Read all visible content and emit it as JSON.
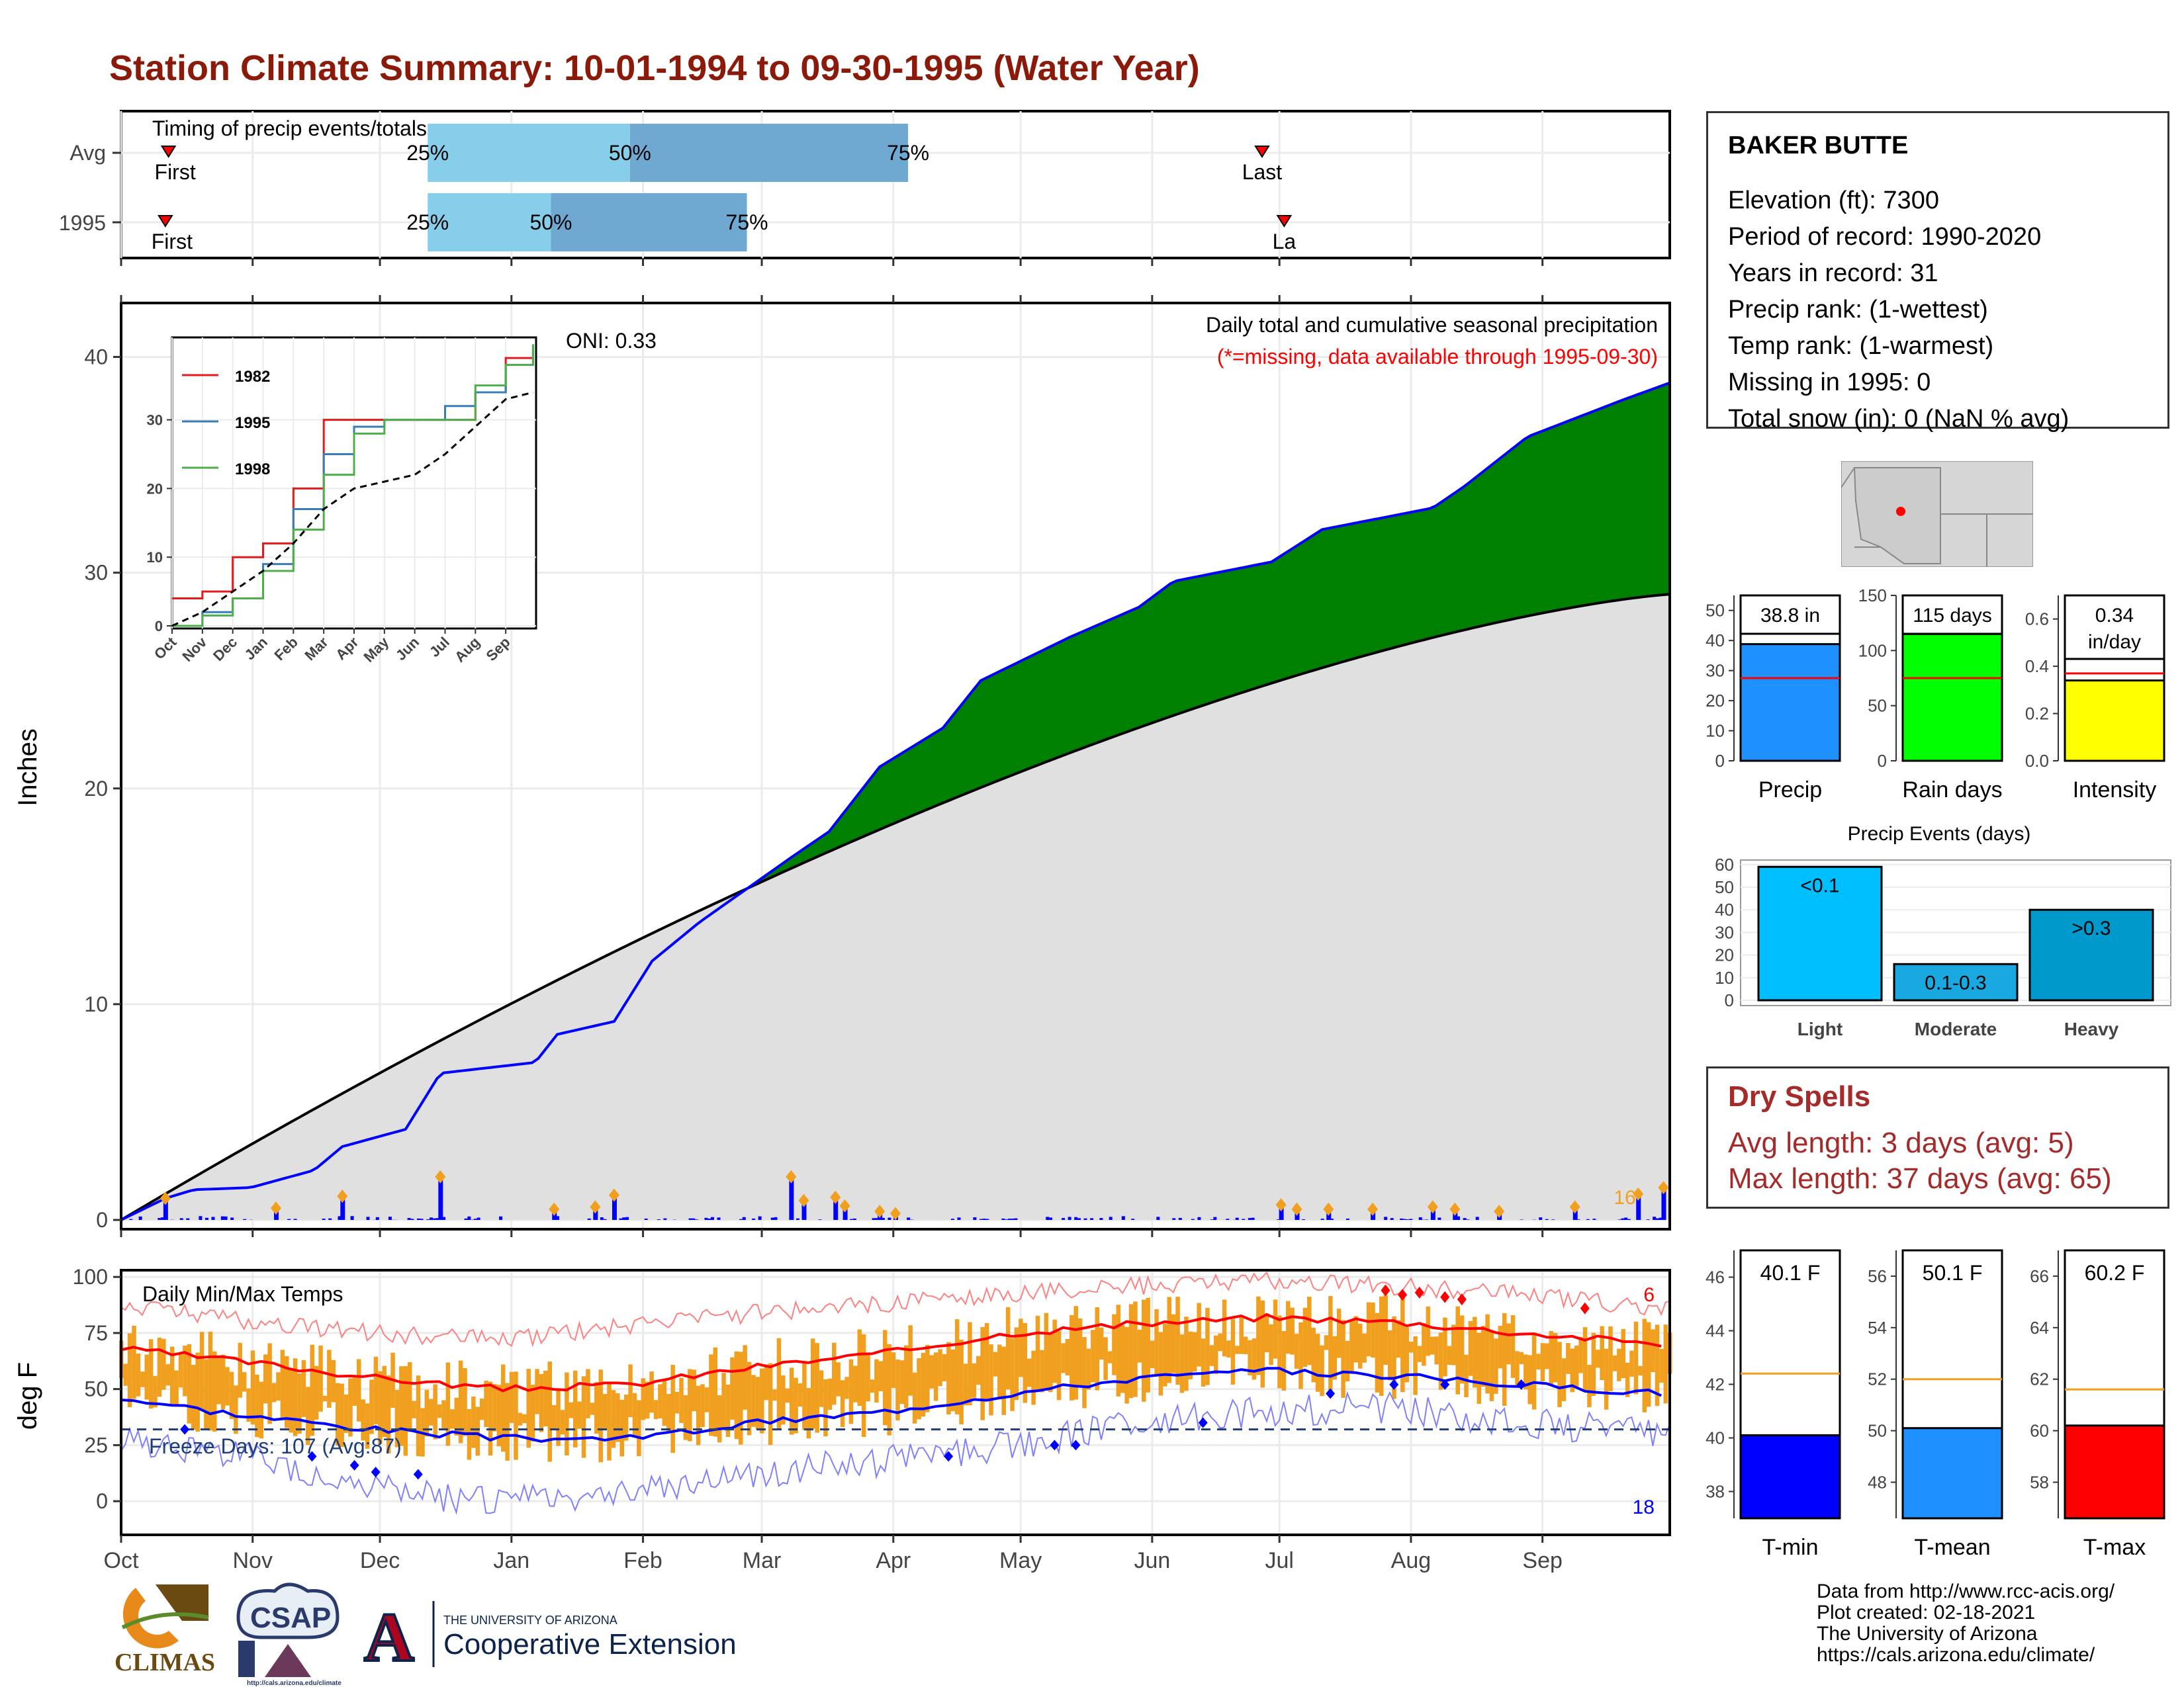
{
  "title": "Station Climate Summary: 10-01-1994 to 09-30-1995 (Water Year)",
  "colors": {
    "title": "#8B1A0A",
    "green": "#008000",
    "blue": "#0000FF",
    "brown": "#8B5A14",
    "gray_fill": "#E0E0E0",
    "orange": "#F0A01E",
    "red": "#FF0000",
    "light_blue": "#87CEEB",
    "steel_blue": "#6FA8D0",
    "dry_red": "#A52A2A"
  },
  "timing": {
    "title": "Timing of precip events/totals",
    "rows": [
      {
        "label": "Avg",
        "first_label": "First",
        "last_label": "Last",
        "first_doy": 15,
        "last_doy": 361,
        "q25": 97,
        "q50": 161,
        "q75": 249,
        "q25_label": "25%",
        "q50_label": "50%",
        "q75_label": "75%"
      },
      {
        "label": "1995",
        "first_label": "First",
        "last_label": "La",
        "first_doy": 14,
        "last_doy": 368,
        "q25": 97,
        "q50": 136,
        "q75": 198,
        "q25_label": "25%",
        "q50_label": "50%",
        "q75_label": "75%"
      }
    ]
  },
  "station": {
    "name": "BAKER BUTTE",
    "lines": [
      "Elevation (ft): 7300",
      "Period of record: 1990-2020",
      "Years in record: 31",
      "Precip rank:  (1-wettest)",
      "Temp rank:  (1-warmest)",
      "Missing in 1995: 0",
      "Total snow (in): 0 (NaN % avg)"
    ]
  },
  "main_chart": {
    "ylabel": "Inches",
    "oni": "ONI: 0.33",
    "caption": "Daily total and cumulative seasonal precipitation",
    "missing_note": "(*=missing, data available through 1995-09-30)",
    "count_label": "16",
    "yticks": [
      "0",
      "10",
      "20",
      "30",
      "40"
    ],
    "months": [
      "Oct",
      "Nov",
      "Dec",
      "Jan",
      "Feb",
      "Mar",
      "Apr",
      "May",
      "Jun",
      "Jul",
      "Aug",
      "Sep"
    ]
  },
  "inset": {
    "legend": [
      "1982",
      "1995",
      "1998"
    ],
    "yticks": [
      "0",
      "10",
      "20",
      "30"
    ],
    "months": [
      "Oct",
      "Nov",
      "Dec",
      "Jan",
      "Feb",
      "Mar",
      "Apr",
      "May",
      "Jun",
      "Jul",
      "Aug",
      "Sep"
    ]
  },
  "temp_chart": {
    "ylabel": "deg F",
    "title": "Daily Min/Max Temps",
    "freeze_label": "Freeze Days: 107 (Avg:87)",
    "hot_count": "6",
    "cold_count": "18",
    "yticks": [
      "0",
      "25",
      "50",
      "75",
      "100"
    ],
    "months": [
      "Oct",
      "Nov",
      "Dec",
      "Jan",
      "Feb",
      "Mar",
      "Apr",
      "May",
      "Jun",
      "Jul",
      "Aug",
      "Sep"
    ]
  },
  "bar_precip": {
    "value_label": "38.8 in",
    "xlabel": "Precip",
    "yticks": [
      "0",
      "10",
      "20",
      "30",
      "40",
      "50"
    ]
  },
  "bar_raindays": {
    "value_label": "115 days",
    "xlabel": "Rain days",
    "yticks": [
      "0",
      "50",
      "100",
      "150"
    ]
  },
  "bar_intensity": {
    "value_label_1": "0.34",
    "value_label_2": "in/day",
    "xlabel": "Intensity",
    "yticks": [
      "0.0",
      "0.2",
      "0.4",
      "0.6"
    ]
  },
  "events": {
    "title": "Precip Events (days)",
    "yticks": [
      "0",
      "10",
      "20",
      "30",
      "40",
      "50",
      "60"
    ],
    "bars": [
      {
        "name": "Light",
        "label": "<0.1"
      },
      {
        "name": "Moderate",
        "label": "0.1-0.3"
      },
      {
        "name": "Heavy",
        "label": ">0.3"
      }
    ]
  },
  "dry_spells": {
    "title": "Dry Spells",
    "avg": "Avg length: 3 days (avg: 5)",
    "max": "Max length: 37 days (avg: 65)"
  },
  "temp_bars": [
    {
      "label": "40.1 F",
      "xlabel": "T-min",
      "yticks": [
        "38",
        "40",
        "42",
        "44",
        "46"
      ]
    },
    {
      "label": "50.1 F",
      "xlabel": "T-mean",
      "yticks": [
        "48",
        "50",
        "52",
        "54",
        "56"
      ]
    },
    {
      "label": "60.2 F",
      "xlabel": "T-max",
      "yticks": [
        "58",
        "60",
        "62",
        "64",
        "66"
      ]
    }
  ],
  "footer": {
    "lines": [
      "Data from http://www.rcc-acis.org/",
      "Plot created: 02-18-2021",
      "The University of Arizona",
      "https://cals.arizona.edu/climate/"
    ]
  },
  "logos": {
    "climas": "CLIMAS",
    "csap": "CSAP",
    "csap_url": "http://cals.arizona.edu/climate",
    "ua_letter": "A",
    "ua_small": "THE UNIVERSITY OF ARIZONA",
    "ua_big": "Cooperative Extension"
  },
  "chart_data": [
    {
      "type": "area",
      "title": "Daily total and cumulative seasonal precipitation",
      "ylabel": "Inches",
      "ylim": [
        0,
        42
      ],
      "x_unit": "day of water year (Oct 1 = 0)",
      "cumulative_1995": [
        [
          0,
          0
        ],
        [
          14,
          1.0
        ],
        [
          23,
          1.4
        ],
        [
          41,
          1.5
        ],
        [
          61,
          2.3
        ],
        [
          70,
          3.4
        ],
        [
          90,
          4.2
        ],
        [
          101,
          6.8
        ],
        [
          131,
          7.3
        ],
        [
          138,
          8.6
        ],
        [
          156,
          9.2
        ],
        [
          168,
          12.0
        ],
        [
          183,
          13.8
        ],
        [
          212,
          16.8
        ],
        [
          224,
          18.0
        ],
        [
          240,
          21.0
        ],
        [
          260,
          22.8
        ],
        [
          272,
          25.0
        ],
        [
          300,
          27.0
        ],
        [
          322,
          28.4
        ],
        [
          333,
          29.6
        ],
        [
          364,
          30.5
        ],
        [
          380,
          32.0
        ],
        [
          415,
          33.0
        ],
        [
          425,
          34.0
        ],
        [
          445,
          36.3
        ],
        [
          475,
          38.0
        ],
        [
          490,
          38.8
        ]
      ],
      "cumulative_avg_end": 29.0,
      "daily_precip_highlights": [
        [
          14,
          1.0
        ],
        [
          49,
          0.55
        ],
        [
          70,
          1.1
        ],
        [
          101,
          2.0
        ],
        [
          137,
          0.5
        ],
        [
          150,
          0.6
        ],
        [
          156,
          1.15
        ],
        [
          212,
          2.0
        ],
        [
          216,
          0.9
        ],
        [
          226,
          1.05
        ],
        [
          229,
          0.65
        ],
        [
          240,
          0.4
        ],
        [
          245,
          0.3
        ],
        [
          367,
          0.7
        ],
        [
          372,
          0.5
        ],
        [
          382,
          0.5
        ],
        [
          396,
          0.5
        ],
        [
          415,
          0.6
        ],
        [
          422,
          0.5
        ],
        [
          436,
          0.4
        ],
        [
          460,
          0.6
        ],
        [
          480,
          1.2
        ],
        [
          488,
          1.5
        ]
      ]
    },
    {
      "type": "line",
      "title": "Inset cumulative precipitation comparison",
      "series": [
        {
          "name": "1982",
          "x": [
            0,
            1,
            2,
            3,
            4,
            5,
            6,
            7,
            8,
            9,
            10,
            11,
            11.9
          ],
          "y": [
            4,
            5,
            10,
            12,
            20,
            30,
            30,
            30,
            30,
            30,
            34,
            39,
            40
          ]
        },
        {
          "name": "1995",
          "x": [
            0,
            1,
            2,
            3,
            4,
            5,
            6,
            7,
            8,
            9,
            10,
            11,
            11.9
          ],
          "y": [
            0,
            2,
            4,
            9,
            17,
            25,
            29,
            30,
            30,
            32,
            34,
            38,
            41
          ]
        },
        {
          "name": "1998",
          "x": [
            0,
            1,
            2,
            3,
            4,
            5,
            6,
            7,
            8,
            9,
            10,
            11,
            11.9
          ],
          "y": [
            0,
            1.5,
            4,
            8,
            14,
            22,
            28,
            30,
            30,
            30,
            35,
            38,
            41
          ]
        }
      ],
      "average": {
        "x": [
          0,
          1,
          2,
          3,
          4,
          5,
          6,
          7,
          8,
          9,
          10,
          11,
          11.9
        ],
        "y": [
          0,
          2,
          5,
          8,
          12,
          17,
          20,
          21,
          22,
          25,
          29,
          33,
          34
        ]
      },
      "ylim": [
        0,
        42
      ]
    },
    {
      "type": "line",
      "title": "Daily Min/Max Temps",
      "ylabel": "deg F",
      "ylim": [
        -10,
        105
      ],
      "freeze_line": 32,
      "x": [
        0,
        30,
        60,
        90,
        120,
        150,
        180,
        210,
        240,
        270,
        300,
        330,
        365
      ],
      "avg_max": [
        68,
        62,
        55,
        50,
        52,
        60,
        66,
        75,
        79,
        82,
        80,
        75,
        70
      ],
      "avg_min": [
        46,
        38,
        32,
        28,
        28,
        35,
        40,
        48,
        55,
        58,
        56,
        52,
        48
      ],
      "record_max": [
        88,
        80,
        75,
        72,
        78,
        84,
        88,
        92,
        96,
        98,
        96,
        92,
        86
      ],
      "record_min": [
        28,
        20,
        5,
        0,
        5,
        12,
        18,
        25,
        35,
        40,
        42,
        35,
        30
      ]
    },
    {
      "type": "bar",
      "categories": [
        "Precip"
      ],
      "values": [
        38.8
      ],
      "avg": 27.5,
      "ylim": [
        0,
        55
      ]
    },
    {
      "type": "bar",
      "categories": [
        "Rain days"
      ],
      "values": [
        115
      ],
      "avg": 75,
      "ylim": [
        0,
        150
      ]
    },
    {
      "type": "bar",
      "categories": [
        "Intensity"
      ],
      "values": [
        0.34
      ],
      "avg": 0.37,
      "ylim": [
        0,
        0.7
      ]
    },
    {
      "type": "bar",
      "title": "Precip Events (days)",
      "categories": [
        "Light",
        "Moderate",
        "Heavy"
      ],
      "values": [
        59,
        16,
        40
      ],
      "ylim": [
        0,
        62
      ]
    },
    {
      "type": "bar",
      "categories": [
        "T-min"
      ],
      "values": [
        40.1
      ],
      "avg": 42.4,
      "ylim": [
        37,
        47
      ]
    },
    {
      "type": "bar",
      "categories": [
        "T-mean"
      ],
      "values": [
        50.1
      ],
      "avg": 52.0,
      "ylim": [
        46.6,
        57
      ]
    },
    {
      "type": "bar",
      "categories": [
        "T-max"
      ],
      "values": [
        60.2
      ],
      "avg": 61.6,
      "ylim": [
        56.6,
        67
      ]
    }
  ]
}
